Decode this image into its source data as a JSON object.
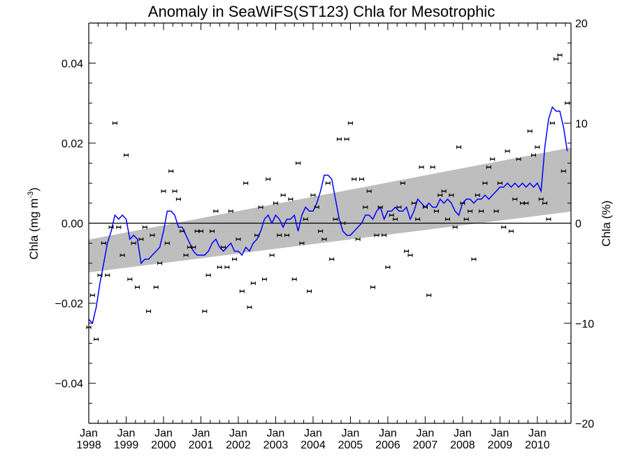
{
  "chart_data": {
    "type": "scatter",
    "title": "Anomaly in SeaWiFS(ST123) Chla for Mesotrophic",
    "ylabel_left": "Chla (mg m",
    "ylabel_left_sup": "-3",
    "ylabel_left_close": ")",
    "ylabel_right": "Chla (%)",
    "ylim_left": [
      -0.05,
      0.05
    ],
    "ylim_right": [
      -20,
      20
    ],
    "xlim": [
      1998.0,
      2010.9
    ],
    "yticks_left": [
      "0.04",
      "0.02",
      "0.00",
      "−0.02",
      "−0.04"
    ],
    "ytick_values_left": [
      0.04,
      0.02,
      0.0,
      -0.02,
      -0.04
    ],
    "yticks_right": [
      "20",
      "10",
      "0",
      "−10",
      "−20"
    ],
    "ytick_values_right": [
      20,
      10,
      0,
      -10,
      -20
    ],
    "xticks": [
      {
        "year": 1998,
        "month": "Jan",
        "label": "1998"
      },
      {
        "year": 1999,
        "month": "Jan",
        "label": "1999"
      },
      {
        "year": 2000,
        "month": "Jan",
        "label": "2000"
      },
      {
        "year": 2001,
        "month": "Jan",
        "label": "2001"
      },
      {
        "year": 2002,
        "month": "Jan",
        "label": "2002"
      },
      {
        "year": 2003,
        "month": "Jan",
        "label": "2003"
      },
      {
        "year": 2004,
        "month": "Jan",
        "label": "2004"
      },
      {
        "year": 2005,
        "month": "Jan",
        "label": "2005"
      },
      {
        "year": 2006,
        "month": "Jan",
        "label": "2006"
      },
      {
        "year": 2007,
        "month": "Jan",
        "label": "2007"
      },
      {
        "year": 2008,
        "month": "Jan",
        "label": "2008"
      },
      {
        "year": 2009,
        "month": "Jan",
        "label": "2009"
      },
      {
        "year": 2010,
        "month": "Jan",
        "label": "2010"
      }
    ],
    "colors": {
      "line": "#0000ff",
      "band": "#bebebe",
      "points": "#000000",
      "zero_line": "#000000"
    },
    "trend_band": {
      "x": [
        1998.0,
        2010.9
      ],
      "lower": [
        -0.0123,
        0.0029
      ],
      "upper": [
        -0.0041,
        0.0189
      ]
    },
    "series": [
      {
        "kind": "monthly_anomaly_points",
        "x": [
          1998.0,
          1998.1,
          1998.2,
          1998.3,
          1998.4,
          1998.5,
          1998.6,
          1998.7,
          1998.8,
          1998.9,
          1999.0,
          1999.1,
          1999.2,
          1999.3,
          1999.4,
          1999.5,
          1999.6,
          1999.7,
          1999.8,
          1999.9,
          2000.0,
          2000.1,
          2000.2,
          2000.3,
          2000.4,
          2000.5,
          2000.6,
          2000.7,
          2000.8,
          2000.9,
          2001.0,
          2001.1,
          2001.2,
          2001.3,
          2001.4,
          2001.5,
          2001.6,
          2001.7,
          2001.8,
          2001.9,
          2002.0,
          2002.1,
          2002.2,
          2002.3,
          2002.4,
          2002.5,
          2002.6,
          2002.7,
          2002.8,
          2002.9,
          2003.0,
          2003.1,
          2003.2,
          2003.3,
          2003.4,
          2003.5,
          2003.6,
          2003.7,
          2003.8,
          2003.9,
          2004.0,
          2004.1,
          2004.2,
          2004.3,
          2004.4,
          2004.5,
          2004.6,
          2004.7,
          2004.8,
          2004.9,
          2005.0,
          2005.1,
          2005.2,
          2005.3,
          2005.4,
          2005.5,
          2005.6,
          2005.7,
          2005.8,
          2005.9,
          2006.0,
          2006.1,
          2006.2,
          2006.3,
          2006.4,
          2006.5,
          2006.6,
          2006.7,
          2006.8,
          2006.9,
          2007.0,
          2007.1,
          2007.2,
          2007.3,
          2007.4,
          2007.5,
          2007.6,
          2007.7,
          2007.8,
          2007.9,
          2008.0,
          2008.1,
          2008.2,
          2008.3,
          2008.4,
          2008.5,
          2008.6,
          2008.7,
          2008.8,
          2008.9,
          2009.0,
          2009.1,
          2009.2,
          2009.3,
          2009.4,
          2009.5,
          2009.6,
          2009.7,
          2009.8,
          2009.9,
          2010.0,
          2010.1,
          2010.2,
          2010.3,
          2010.4,
          2010.5,
          2010.6,
          2010.7,
          2010.8
        ],
        "y": [
          -0.026,
          -0.018,
          -0.029,
          -0.013,
          -0.005,
          -0.013,
          -0.001,
          0.025,
          -0.001,
          -0.008,
          0.017,
          -0.014,
          -0.005,
          -0.016,
          -0.004,
          -0.001,
          -0.022,
          -0.003,
          -0.016,
          -0.01,
          0.008,
          -0.005,
          0.013,
          0.008,
          0.006,
          -0.002,
          -0.008,
          -0.006,
          -0.006,
          -0.002,
          -0.002,
          -0.022,
          -0.013,
          -0.002,
          0.003,
          -0.011,
          -0.006,
          -0.011,
          0.003,
          -0.009,
          -0.004,
          -0.017,
          0.01,
          -0.021,
          -0.015,
          -0.003,
          0.004,
          -0.014,
          0.011,
          -0.008,
          0.005,
          -0.003,
          0.007,
          -0.003,
          0.006,
          -0.014,
          0.015,
          -0.005,
          0.001,
          -0.017,
          0.007,
          0.004,
          -0.002,
          -0.004,
          0.01,
          -0.009,
          0.001,
          0.021,
          0.0,
          0.021,
          0.025,
          0.011,
          -0.004,
          0.011,
          0.004,
          0.008,
          -0.016,
          -0.003,
          0.004,
          -0.003,
          -0.011,
          0.002,
          0.001,
          0.004,
          0.01,
          -0.007,
          -0.008,
          0.005,
          0.001,
          0.014,
          0.004,
          -0.018,
          0.014,
          0.003,
          0.007,
          0.008,
          0.001,
          0.007,
          -0.001,
          0.019,
          0.005,
          0.001,
          0.003,
          -0.009,
          0.007,
          0.003,
          0.01,
          0.014,
          0.016,
          0.003,
          0.01,
          -0.001,
          0.018,
          -0.002,
          0.006,
          0.016,
          0.005,
          0.005,
          0.023,
          0.017,
          0.019,
          0.006,
          0.005,
          0.001,
          0.025,
          0.041,
          0.042,
          0.013,
          0.03
        ]
      }
    ],
    "running_mean": {
      "x": [
        1998.0,
        1998.1,
        1998.2,
        1998.3,
        1998.4,
        1998.5,
        1998.6,
        1998.7,
        1998.8,
        1998.9,
        1999.0,
        1999.1,
        1999.2,
        1999.3,
        1999.4,
        1999.5,
        1999.6,
        1999.7,
        1999.8,
        1999.9,
        2000.0,
        2000.1,
        2000.2,
        2000.3,
        2000.4,
        2000.5,
        2000.6,
        2000.7,
        2000.8,
        2000.9,
        2001.0,
        2001.1,
        2001.2,
        2001.3,
        2001.4,
        2001.5,
        2001.6,
        2001.7,
        2001.8,
        2001.9,
        2002.0,
        2002.1,
        2002.2,
        2002.3,
        2002.4,
        2002.5,
        2002.6,
        2002.7,
        2002.8,
        2002.9,
        2003.0,
        2003.1,
        2003.2,
        2003.3,
        2003.4,
        2003.5,
        2003.6,
        2003.7,
        2003.8,
        2003.9,
        2004.0,
        2004.1,
        2004.2,
        2004.3,
        2004.4,
        2004.5,
        2004.6,
        2004.7,
        2004.8,
        2004.9,
        2005.0,
        2005.1,
        2005.2,
        2005.3,
        2005.4,
        2005.5,
        2005.6,
        2005.7,
        2005.8,
        2005.9,
        2006.0,
        2006.1,
        2006.2,
        2006.3,
        2006.4,
        2006.5,
        2006.6,
        2006.7,
        2006.8,
        2006.9,
        2007.0,
        2007.1,
        2007.2,
        2007.3,
        2007.4,
        2007.5,
        2007.6,
        2007.7,
        2007.8,
        2007.9,
        2008.0,
        2008.1,
        2008.2,
        2008.3,
        2008.4,
        2008.5,
        2008.6,
        2008.7,
        2008.8,
        2008.9,
        2009.0,
        2009.1,
        2009.2,
        2009.3,
        2009.4,
        2009.5,
        2009.6,
        2009.7,
        2009.8,
        2009.9,
        2010.0,
        2010.1,
        2010.2,
        2010.3,
        2010.4,
        2010.5,
        2010.6,
        2010.7,
        2010.8
      ],
      "y": [
        -0.024,
        -0.025,
        -0.021,
        -0.015,
        -0.01,
        -0.005,
        -0.002,
        0.002,
        0.001,
        0.002,
        0.001,
        -0.004,
        -0.003,
        -0.004,
        -0.01,
        -0.009,
        -0.009,
        -0.008,
        -0.007,
        -0.006,
        -0.002,
        0.003,
        0.003,
        0.002,
        -0.001,
        -0.001,
        -0.003,
        -0.005,
        -0.007,
        -0.008,
        -0.008,
        -0.008,
        -0.007,
        -0.005,
        -0.004,
        -0.006,
        -0.007,
        -0.006,
        -0.005,
        -0.007,
        -0.007,
        -0.008,
        -0.006,
        -0.007,
        -0.005,
        -0.004,
        -0.002,
        0.001,
        0.002,
        0.0,
        0.002,
        0.001,
        -0.001,
        0.001,
        0.001,
        0.002,
        -0.002,
        0.002,
        0.004,
        0.003,
        0.003,
        0.005,
        0.008,
        0.012,
        0.012,
        0.011,
        0.006,
        0.001,
        -0.002,
        -0.003,
        -0.003,
        -0.002,
        -0.001,
        0.0,
        0.002,
        0.002,
        0.001,
        0.003,
        0.004,
        0.001,
        0.003,
        0.003,
        0.004,
        0.003,
        0.003,
        0.004,
        0.001,
        0.003,
        0.006,
        0.005,
        0.004,
        0.005,
        0.004,
        0.004,
        0.006,
        0.005,
        0.006,
        0.005,
        0.003,
        0.002,
        0.005,
        0.006,
        0.006,
        0.005,
        0.006,
        0.006,
        0.007,
        0.006,
        0.007,
        0.008,
        0.009,
        0.009,
        0.01,
        0.009,
        0.01,
        0.009,
        0.01,
        0.009,
        0.01,
        0.009,
        0.01,
        0.008,
        0.019,
        0.026,
        0.029,
        0.028,
        0.028,
        0.024,
        0.018
      ]
    }
  }
}
